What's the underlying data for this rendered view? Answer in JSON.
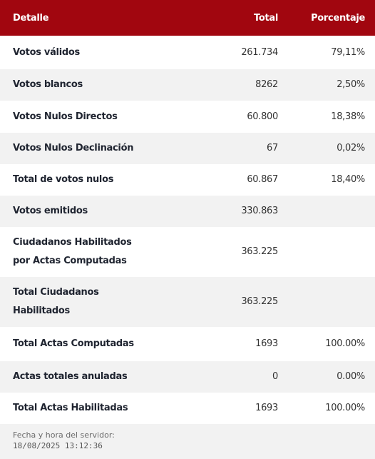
{
  "table": {
    "header": [
      "Detalle",
      "Total",
      "Porcentaje"
    ],
    "rows": [
      {
        "detalle": "Votos válidos",
        "total": "261.734",
        "porcentaje": "79,11%"
      },
      {
        "detalle": "Votos blancos",
        "total": "8262",
        "porcentaje": "2,50%"
      },
      {
        "detalle": "Votos Nulos Directos",
        "total": "60.800",
        "porcentaje": "18,38%"
      },
      {
        "detalle": "Votos Nulos Declinación",
        "total": "67",
        "porcentaje": "0,02%"
      },
      {
        "detalle": "Total de votos nulos",
        "total": "60.867",
        "porcentaje": "18,40%"
      },
      {
        "detalle": "Votos emitidos",
        "total": "330.863"
      },
      {
        "detalle": "Ciudadanos Habilitados por Actas Computadas",
        "total": "363.225"
      },
      {
        "detalle": "Total Ciudadanos Habilitados",
        "total": "363.225"
      },
      {
        "detalle": "Total Actas Computadas",
        "total": "1693",
        "porcentaje": "100.00%"
      },
      {
        "detalle": "Actas totales anuladas",
        "total": "0",
        "porcentaje": "0.00%"
      },
      {
        "detalle": "Total Actas Habilitadas",
        "total": "1693",
        "porcentaje": "100.00%"
      }
    ]
  },
  "footer": {
    "label": "Fecha y hora del servidor:",
    "timestamp": "18/08/2025 13:12:36"
  }
}
